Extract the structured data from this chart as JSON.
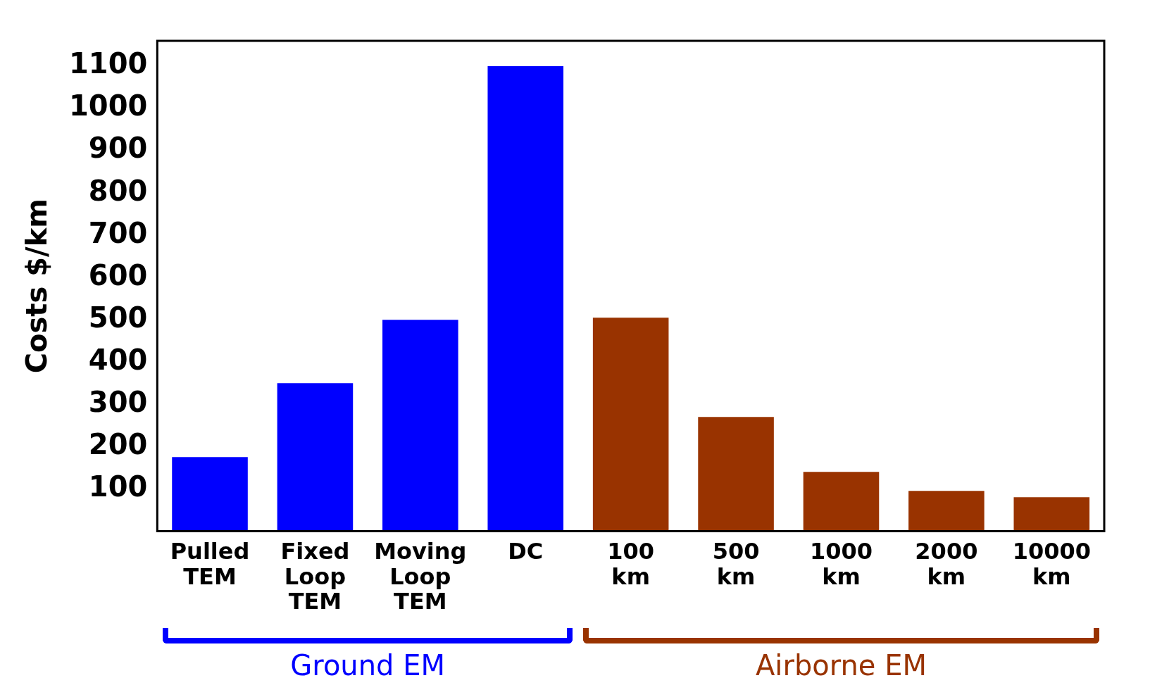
{
  "chart_data": {
    "type": "bar",
    "ylabel": "Costs $/km",
    "categories": [
      "Pulled TEM",
      "Fixed Loop TEM",
      "Moving Loop TEM",
      "DC",
      "100 km",
      "500 km",
      "1000 km",
      "2000 km",
      "10000 km"
    ],
    "series": [
      {
        "name": "Ground EM",
        "color": "#0000ff",
        "values": [
          175,
          350,
          500,
          1100,
          null,
          null,
          null,
          null,
          null
        ]
      },
      {
        "name": "Airborne EM",
        "color": "#993300",
        "values": [
          null,
          null,
          null,
          null,
          505,
          270,
          140,
          95,
          80
        ]
      }
    ],
    "ylim": [
      0,
      1160
    ],
    "yticks": [
      100,
      200,
      300,
      400,
      500,
      600,
      700,
      800,
      900,
      1000,
      1100
    ],
    "grid": false,
    "legend": false
  }
}
